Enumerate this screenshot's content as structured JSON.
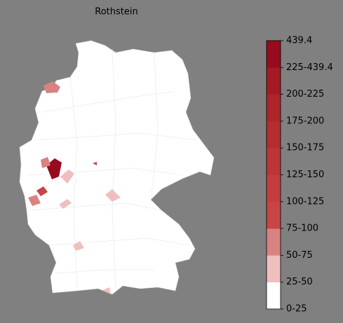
{
  "title": "Rothstein",
  "colorbar": {
    "labels": [
      "0-25",
      "25-50",
      "50-75",
      "75-100",
      "100-125",
      "125-150",
      "150-175",
      "175-200",
      "200-225",
      "225-439.4",
      "439.4"
    ],
    "colors": [
      "#ffffff",
      "#efbfbf",
      "#d98282",
      "#c94444",
      "#c43d3d",
      "#bd3535",
      "#b52d2f",
      "#ad2429",
      "#a41a24",
      "#970b1f"
    ]
  }
}
